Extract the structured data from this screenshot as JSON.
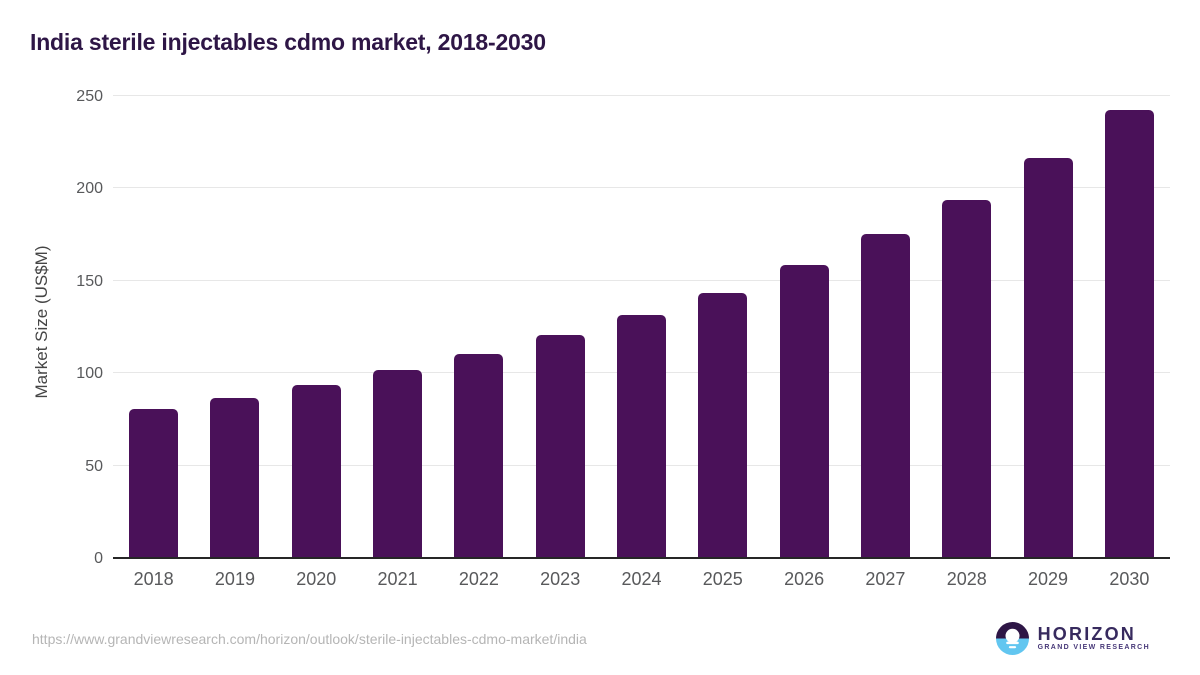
{
  "title": "India sterile injectables cdmo market, 2018-2030",
  "footer": {
    "source_url": "https://www.grandviewresearch.com/horizon/outlook/sterile-injectables-cdmo-market/india",
    "logo": {
      "brand": "HORIZON",
      "sub_brand": "GRAND VIEW RESEARCH"
    }
  },
  "colors": {
    "bar": "#4a1159",
    "title_text": "#2e1646",
    "axis_tick_text": "#58595b",
    "axis_title_text": "#454545",
    "gridline": "#e7e7e7",
    "axis_line": "#262626",
    "url_text": "#b5b5b5",
    "logo_purple": "#2e1646",
    "logo_blue": "#62c6f0",
    "logo_text_purple": "#372a5e"
  },
  "chart_data": {
    "type": "bar",
    "title": "India sterile injectables cdmo market, 2018-2030",
    "categories": [
      "2018",
      "2019",
      "2020",
      "2021",
      "2022",
      "2023",
      "2024",
      "2025",
      "2026",
      "2027",
      "2028",
      "2029",
      "2030"
    ],
    "values": [
      80,
      86,
      93,
      101,
      110,
      120,
      131,
      143,
      158,
      175,
      193,
      216,
      242
    ],
    "xlabel": "",
    "ylabel": "Market Size (US$M)",
    "ylim": [
      0,
      250
    ],
    "yticks": [
      0,
      50,
      100,
      150,
      200,
      250
    ],
    "grid": "horizontal",
    "legend": "none",
    "bar_color": "#4a1159"
  }
}
